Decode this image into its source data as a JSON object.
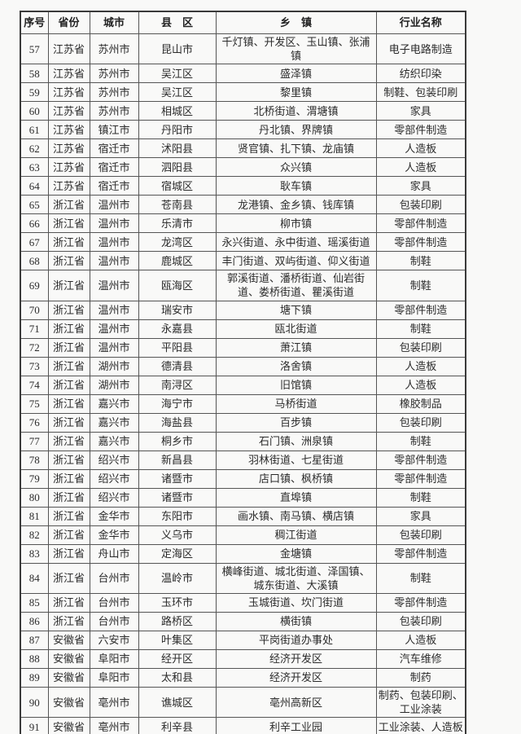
{
  "table": {
    "column_keys": [
      "no",
      "province",
      "city",
      "county",
      "township",
      "industry"
    ],
    "headers": [
      "序号",
      "省份",
      "城市",
      "县　区",
      "乡　镇",
      "行业名称"
    ],
    "rows": [
      [
        "57",
        "江苏省",
        "苏州市",
        "昆山市",
        "千灯镇、开发区、玉山镇、张浦镇",
        "电子电路制造"
      ],
      [
        "58",
        "江苏省",
        "苏州市",
        "吴江区",
        "盛泽镇",
        "纺织印染"
      ],
      [
        "59",
        "江苏省",
        "苏州市",
        "吴江区",
        "黎里镇",
        "制鞋、包装印刷"
      ],
      [
        "60",
        "江苏省",
        "苏州市",
        "相城区",
        "北桥街道、渭塘镇",
        "家具"
      ],
      [
        "61",
        "江苏省",
        "镇江市",
        "丹阳市",
        "丹北镇、界牌镇",
        "零部件制造"
      ],
      [
        "62",
        "江苏省",
        "宿迁市",
        "沭阳县",
        "贤官镇、扎下镇、龙庙镇",
        "人造板"
      ],
      [
        "63",
        "江苏省",
        "宿迁市",
        "泗阳县",
        "众兴镇",
        "人造板"
      ],
      [
        "64",
        "江苏省",
        "宿迁市",
        "宿城区",
        "耿车镇",
        "家具"
      ],
      [
        "65",
        "浙江省",
        "温州市",
        "苍南县",
        "龙港镇、金乡镇、钱库镇",
        "包装印刷"
      ],
      [
        "66",
        "浙江省",
        "温州市",
        "乐清市",
        "柳市镇",
        "零部件制造"
      ],
      [
        "67",
        "浙江省",
        "温州市",
        "龙湾区",
        "永兴街道、永中街道、瑶溪街道",
        "零部件制造"
      ],
      [
        "68",
        "浙江省",
        "温州市",
        "鹿城区",
        "丰门街道、双屿街道、仰义街道",
        "制鞋"
      ],
      [
        "69",
        "浙江省",
        "温州市",
        "瓯海区",
        "郭溪街道、潘桥街道、仙岩街道、娄桥街道、瞿溪街道",
        "制鞋"
      ],
      [
        "70",
        "浙江省",
        "温州市",
        "瑞安市",
        "塘下镇",
        "零部件制造"
      ],
      [
        "71",
        "浙江省",
        "温州市",
        "永嘉县",
        "瓯北街道",
        "制鞋"
      ],
      [
        "72",
        "浙江省",
        "温州市",
        "平阳县",
        "萧江镇",
        "包装印刷"
      ],
      [
        "73",
        "浙江省",
        "湖州市",
        "德清县",
        "洛舍镇",
        "人造板"
      ],
      [
        "74",
        "浙江省",
        "湖州市",
        "南浔区",
        "旧馆镇",
        "人造板"
      ],
      [
        "75",
        "浙江省",
        "嘉兴市",
        "海宁市",
        "马桥街道",
        "橡胶制品"
      ],
      [
        "76",
        "浙江省",
        "嘉兴市",
        "海盐县",
        "百步镇",
        "包装印刷"
      ],
      [
        "77",
        "浙江省",
        "嘉兴市",
        "桐乡市",
        "石门镇、洲泉镇",
        "制鞋"
      ],
      [
        "78",
        "浙江省",
        "绍兴市",
        "新昌县",
        "羽林街道、七星街道",
        "零部件制造"
      ],
      [
        "79",
        "浙江省",
        "绍兴市",
        "诸暨市",
        "店口镇、枫桥镇",
        "零部件制造"
      ],
      [
        "80",
        "浙江省",
        "绍兴市",
        "诸暨市",
        "直埠镇",
        "制鞋"
      ],
      [
        "81",
        "浙江省",
        "金华市",
        "东阳市",
        "画水镇、南马镇、横店镇",
        "家具"
      ],
      [
        "82",
        "浙江省",
        "金华市",
        "义乌市",
        "稠江街道",
        "包装印刷"
      ],
      [
        "83",
        "浙江省",
        "舟山市",
        "定海区",
        "金塘镇",
        "零部件制造"
      ],
      [
        "84",
        "浙江省",
        "台州市",
        "温岭市",
        "横峰街道、城北街道、泽国镇、城东街道、大溪镇",
        "制鞋"
      ],
      [
        "85",
        "浙江省",
        "台州市",
        "玉环市",
        "玉城街道、坎门街道",
        "零部件制造"
      ],
      [
        "86",
        "浙江省",
        "台州市",
        "路桥区",
        "横街镇",
        "包装印刷"
      ],
      [
        "87",
        "安徽省",
        "六安市",
        "叶集区",
        "平岗街道办事处",
        "人造板"
      ],
      [
        "88",
        "安徽省",
        "阜阳市",
        "经开区",
        "经济开发区",
        "汽车维修"
      ],
      [
        "89",
        "安徽省",
        "阜阳市",
        "太和县",
        "经济开发区",
        "制药"
      ],
      [
        "90",
        "安徽省",
        "亳州市",
        "谯城区",
        "亳州高新区",
        "制药、包装印刷、工业涂装"
      ],
      [
        "91",
        "安徽省",
        "亳州市",
        "利辛县",
        "利辛工业园",
        "工业涂装、人造板"
      ]
    ]
  },
  "colors": {
    "page_background": "#f9f9f8",
    "border": "#555555",
    "outer_border": "#3a3a3a",
    "text": "#2b2b2b"
  }
}
